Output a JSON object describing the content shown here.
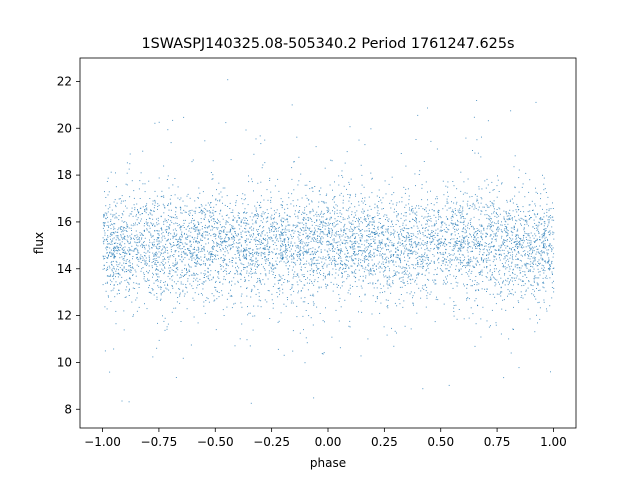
{
  "chart_data": {
    "type": "scatter",
    "title": "1SWASPJ140325.08-505340.2 Period 1761247.625s",
    "xlabel": "phase",
    "ylabel": "flux",
    "xlim": [
      -1.1,
      1.1
    ],
    "ylim": [
      7.2,
      23.0
    ],
    "xticks": [
      -1.0,
      -0.75,
      -0.5,
      -0.25,
      0.0,
      0.25,
      0.5,
      0.75,
      1.0
    ],
    "xtick_labels": [
      "−1.00",
      "−0.75",
      "−0.50",
      "−0.25",
      "0.00",
      "0.25",
      "0.50",
      "0.75",
      "1.00"
    ],
    "yticks": [
      8,
      10,
      12,
      14,
      16,
      18,
      20,
      22
    ],
    "ytick_labels": [
      "8",
      "10",
      "12",
      "14",
      "16",
      "18",
      "20",
      "22"
    ],
    "grid": false,
    "legend": "none",
    "point_color": "#1f77b4",
    "series": [
      {
        "x_range": [
          -1.0,
          1.0
        ],
        "y_center": 15.0,
        "y_core_range": [
          13.0,
          17.5
        ],
        "y_extreme_range": [
          7.8,
          22.3
        ],
        "approx_points": 60000
      }
    ]
  }
}
